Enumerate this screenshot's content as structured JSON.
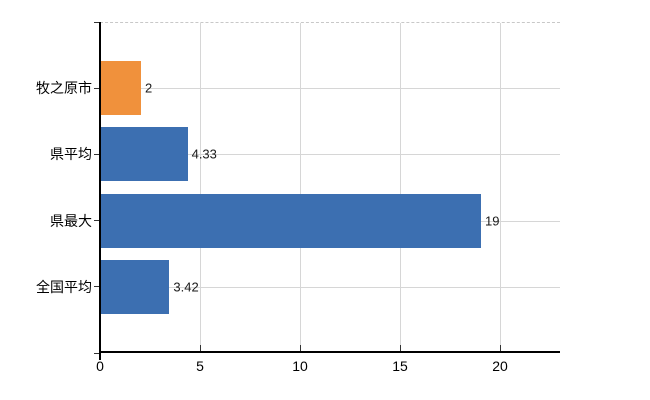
{
  "chart_data": {
    "type": "bar",
    "orientation": "horizontal",
    "title": "",
    "xlabel": "",
    "ylabel": "",
    "categories": [
      "牧之原市",
      "県平均",
      "県最大",
      "全国平均"
    ],
    "values": [
      2,
      4.33,
      19,
      3.42
    ],
    "value_labels": [
      "2",
      "4.33",
      "19",
      "3.42"
    ],
    "x_ticks": [
      0,
      5,
      10,
      15,
      20
    ],
    "x_tick_labels": [
      "0",
      "5",
      "10",
      "15",
      "20"
    ],
    "xlim": [
      0,
      23
    ],
    "grid": true,
    "legend": false,
    "gridline_positions_x": [
      5,
      10,
      15,
      20
    ],
    "colors": {
      "background": "#FFFFFF",
      "bar_colors": [
        "#F0913C",
        "#3C6FB1",
        "#3C6FB1",
        "#3C6FB1"
      ],
      "bar_highlight": "#F0913C",
      "bar_default": "#3C6FB1",
      "gridline": "#D6D6D6",
      "top_border_dashed": "#C8C8C8",
      "axis": "#000000",
      "tick": "#333333",
      "value_label_text": "#1A1A1A",
      "category_label_text": "#000000",
      "tick_label_text": "#000000"
    }
  }
}
